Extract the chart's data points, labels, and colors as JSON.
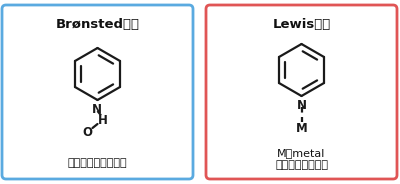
{
  "bg_color": "#ffffff",
  "left_box": {
    "title": "Brønsted酸点",
    "border_color": "#5aaae0",
    "bottom_label": "ピリジニウムイオン"
  },
  "right_box": {
    "title": "Lewis酸点",
    "border_color": "#e05555",
    "bottom_label1": "M：metal",
    "bottom_label2": "ピリジン配位結合"
  },
  "line_color": "#1a1a1a",
  "line_width": 1.6
}
